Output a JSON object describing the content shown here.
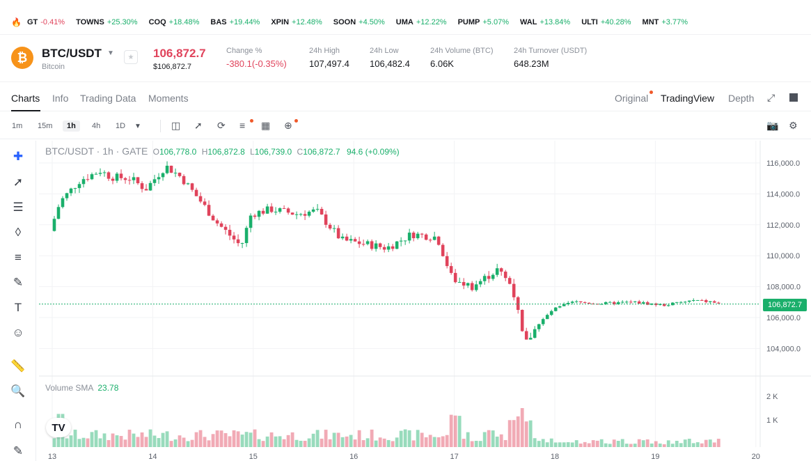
{
  "ticker": [
    {
      "symbol": "GT",
      "change": "-0.41%",
      "negative": true
    },
    {
      "symbol": "TOWNS",
      "change": "+25.30%",
      "negative": false
    },
    {
      "symbol": "COQ",
      "change": "+18.48%",
      "negative": false
    },
    {
      "symbol": "BAS",
      "change": "+19.44%",
      "negative": false
    },
    {
      "symbol": "XPIN",
      "change": "+12.48%",
      "negative": false
    },
    {
      "symbol": "SOON",
      "change": "+4.50%",
      "negative": false
    },
    {
      "symbol": "UMA",
      "change": "+12.22%",
      "negative": false
    },
    {
      "symbol": "PUMP",
      "change": "+5.07%",
      "negative": false
    },
    {
      "symbol": "WAL",
      "change": "+13.84%",
      "negative": false
    },
    {
      "symbol": "ULTI",
      "change": "+40.28%",
      "negative": false
    },
    {
      "symbol": "MNT",
      "change": "+3.77%",
      "negative": false
    }
  ],
  "header": {
    "pair": "BTC/USDT",
    "coin_name": "Bitcoin",
    "price": "106,872.7",
    "price_usd": "$106,872.7",
    "change_label": "Change %",
    "change_value": "-380.1(-0.35%)",
    "high_label": "24h High",
    "high_value": "107,497.4",
    "low_label": "24h Low",
    "low_value": "106,482.4",
    "volume_label": "24h Volume (BTC)",
    "volume_value": "6.06K",
    "turnover_label": "24h Turnover (USDT)",
    "turnover_value": "648.23M"
  },
  "tabs": {
    "left": [
      "Charts",
      "Info",
      "Trading Data",
      "Moments"
    ],
    "right": [
      "Original",
      "TradingView",
      "Depth"
    ],
    "active_left": "Charts",
    "active_right": "TradingView"
  },
  "timeframes": [
    "1m",
    "15m",
    "1h",
    "4h",
    "1D"
  ],
  "active_timeframe": "1h",
  "legend": {
    "title": "BTC/USDT · 1h · GATE",
    "o_label": "O",
    "o_value": "106,778.0",
    "h_label": "H",
    "h_value": "106,872.8",
    "l_label": "L",
    "l_value": "106,739.0",
    "c_label": "C",
    "c_value": "106,872.7",
    "change": "94.6 (+0.09%)"
  },
  "volume_legend": {
    "name": "Volume SMA",
    "value": "23.78"
  },
  "last_price_tag": "106,872.7",
  "colors": {
    "up": "#1aaf6b",
    "down": "#e0435b",
    "accent": "#f0592a"
  },
  "chart_data": {
    "type": "candlestick",
    "y_ticks": [
      "116,000.0",
      "114,000.0",
      "112,000.0",
      "110,000.0",
      "108,000.0",
      "106,000.0",
      "104,000.0"
    ],
    "ylim": [
      103000,
      116800
    ],
    "volume_ticks": [
      "2 K",
      "1 K"
    ],
    "x_ticks": [
      "13",
      "14",
      "15",
      "16",
      "17",
      "18",
      "19",
      "20"
    ],
    "last_price": 106872.7,
    "trend": [
      {
        "day": 13.0,
        "price": 111600
      },
      {
        "day": 13.1,
        "price": 113500
      },
      {
        "day": 13.3,
        "price": 114900
      },
      {
        "day": 13.5,
        "price": 115500
      },
      {
        "day": 13.6,
        "price": 115100
      },
      {
        "day": 13.8,
        "price": 115000
      },
      {
        "day": 13.95,
        "price": 114300
      },
      {
        "day": 14.15,
        "price": 115800
      },
      {
        "day": 14.3,
        "price": 115100
      },
      {
        "day": 14.5,
        "price": 113500
      },
      {
        "day": 14.65,
        "price": 112200
      },
      {
        "day": 14.9,
        "price": 110600
      },
      {
        "day": 15.0,
        "price": 112700
      },
      {
        "day": 15.2,
        "price": 113000
      },
      {
        "day": 15.45,
        "price": 112700
      },
      {
        "day": 15.65,
        "price": 112900
      },
      {
        "day": 15.9,
        "price": 111000
      },
      {
        "day": 16.1,
        "price": 110800
      },
      {
        "day": 16.35,
        "price": 110500
      },
      {
        "day": 16.6,
        "price": 111400
      },
      {
        "day": 16.85,
        "price": 111200
      },
      {
        "day": 17.0,
        "price": 108500
      },
      {
        "day": 17.2,
        "price": 108000
      },
      {
        "day": 17.45,
        "price": 109100
      },
      {
        "day": 17.6,
        "price": 108000
      },
      {
        "day": 17.72,
        "price": 104200
      },
      {
        "day": 17.85,
        "price": 105500
      },
      {
        "day": 18.0,
        "price": 106500
      },
      {
        "day": 18.2,
        "price": 107000
      },
      {
        "day": 18.5,
        "price": 106900
      },
      {
        "day": 18.8,
        "price": 107000
      },
      {
        "day": 19.1,
        "price": 106800
      },
      {
        "day": 19.4,
        "price": 107100
      },
      {
        "day": 19.6,
        "price": 107000
      },
      {
        "day": 19.65,
        "price": 106872.7
      }
    ]
  }
}
